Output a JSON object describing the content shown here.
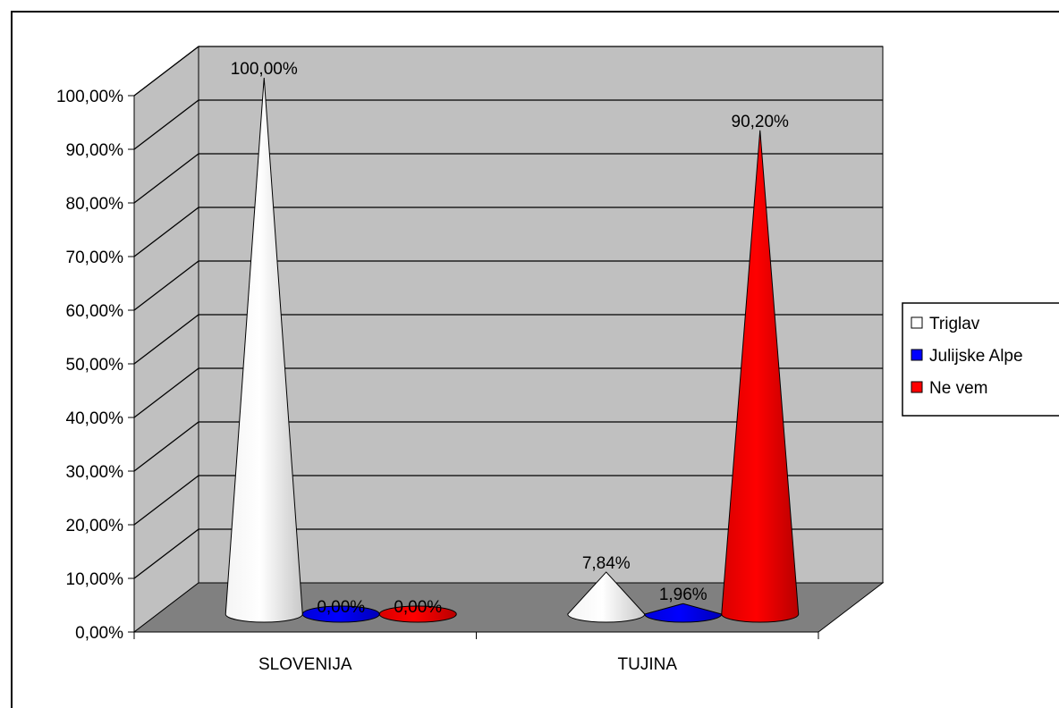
{
  "chart_data": {
    "type": "bar",
    "style": "3d-cone",
    "categories": [
      "SLOVENIJA",
      "TUJINA"
    ],
    "series": [
      {
        "name": "Triglav",
        "values": [
          100.0,
          7.84
        ],
        "color": "#ffffff"
      },
      {
        "name": "Julijske Alpe",
        "values": [
          0.0,
          1.96
        ],
        "color": "#0000ff"
      },
      {
        "name": "Ne vem",
        "values": [
          0.0,
          90.2
        ],
        "color": "#ff0000"
      }
    ],
    "data_labels": [
      [
        "100,00%",
        "7,84%"
      ],
      [
        "0,00%",
        "1,96%"
      ],
      [
        "0,00%",
        "90,20%"
      ]
    ],
    "y_ticks": [
      "0,00%",
      "10,00%",
      "20,00%",
      "30,00%",
      "40,00%",
      "50,00%",
      "60,00%",
      "70,00%",
      "80,00%",
      "90,00%",
      "100,00%"
    ],
    "ylim": [
      0,
      100
    ],
    "grid": true,
    "legend": "right",
    "wall_color": "#c0c0c0",
    "floor_color": "#808080",
    "title": "",
    "xlabel": "",
    "ylabel": ""
  }
}
